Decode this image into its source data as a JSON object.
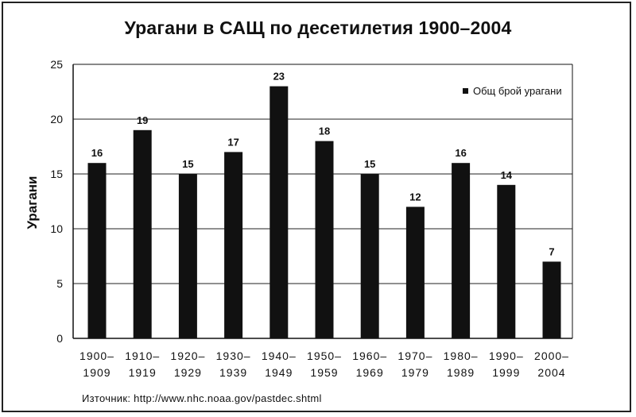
{
  "chart_data": {
    "type": "bar",
    "title": "Урагани в САЩ по десетилетия 1900–2004",
    "ylabel": "Урагани",
    "xlabel": "",
    "ylim": [
      0,
      25
    ],
    "yticks": [
      0,
      5,
      10,
      15,
      20,
      25
    ],
    "grid": true,
    "legend_position": "top-right",
    "categories": [
      [
        "1900–",
        "1909"
      ],
      [
        "1910–",
        "1919"
      ],
      [
        "1920–",
        "1929"
      ],
      [
        "1930–",
        "1939"
      ],
      [
        "1940–",
        "1949"
      ],
      [
        "1950–",
        "1959"
      ],
      [
        "1960–",
        "1969"
      ],
      [
        "1970–",
        "1979"
      ],
      [
        "1980–",
        "1989"
      ],
      [
        "1990–",
        "1999"
      ],
      [
        "2000–",
        "2004"
      ]
    ],
    "series": [
      {
        "name": "Общ брой урагани",
        "values": [
          16,
          19,
          15,
          17,
          23,
          18,
          15,
          12,
          16,
          14,
          7
        ]
      }
    ],
    "bar_color": "#111111",
    "source": "Източник:  http://www.nhc.noaa.gov/pastdec.shtml"
  }
}
